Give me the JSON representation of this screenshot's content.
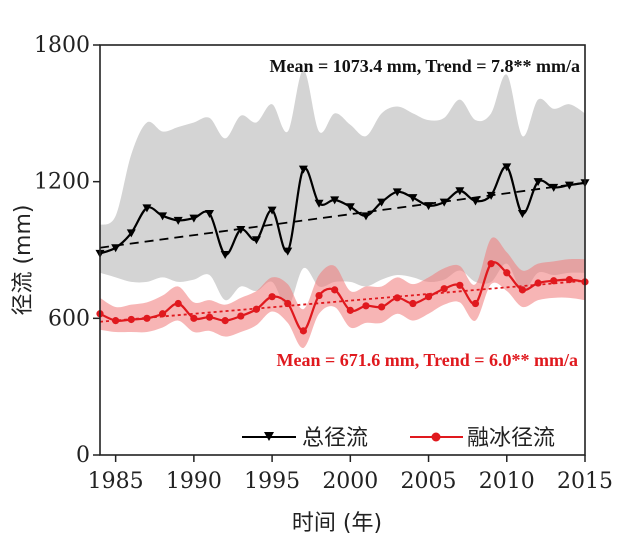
{
  "chart_data": {
    "type": "line",
    "xlabel": "时间 (年)",
    "ylabel": "径流 (mm)",
    "xlim": [
      1984,
      2015
    ],
    "ylim": [
      0,
      1800
    ],
    "xticks": [
      "1985",
      "1990",
      "1995",
      "2000",
      "2005",
      "2010",
      "2015"
    ],
    "yticks": [
      "0",
      "600",
      "1200",
      "1800"
    ],
    "x": [
      1984,
      1985,
      1986,
      1987,
      1988,
      1989,
      1990,
      1991,
      1992,
      1993,
      1994,
      1995,
      1996,
      1997,
      1998,
      1999,
      2000,
      2001,
      2002,
      2003,
      2004,
      2005,
      2006,
      2007,
      2008,
      2009,
      2010,
      2011,
      2012,
      2013,
      2014,
      2015
    ],
    "series": [
      {
        "name": "总径流",
        "color": "#000000",
        "marker": "triangle-down",
        "values": [
          885,
          910,
          975,
          1085,
          1050,
          1030,
          1040,
          1060,
          880,
          990,
          945,
          1075,
          895,
          1255,
          1105,
          1120,
          1090,
          1050,
          1110,
          1155,
          1130,
          1095,
          1110,
          1160,
          1115,
          1140,
          1265,
          1060,
          1200,
          1175,
          1185,
          1195
        ],
        "band_upper": [
          1010,
          1050,
          1320,
          1460,
          1420,
          1440,
          1460,
          1480,
          1390,
          1490,
          1460,
          1540,
          1420,
          1690,
          1420,
          1500,
          1450,
          1400,
          1500,
          1530,
          1500,
          1470,
          1480,
          1560,
          1470,
          1500,
          1670,
          1400,
          1560,
          1520,
          1540,
          1500
        ],
        "band_lower": [
          800,
          780,
          760,
          760,
          780,
          760,
          770,
          790,
          680,
          740,
          720,
          760,
          650,
          820,
          740,
          760,
          760,
          740,
          770,
          790,
          780,
          760,
          770,
          810,
          760,
          760,
          840,
          720,
          800,
          790,
          800,
          800
        ],
        "trend": {
          "start": 910,
          "end": 1195
        },
        "annotation": "Mean = 1073.4 mm, Trend = 7.8** mm/a"
      },
      {
        "name": "融冰径流",
        "color": "#e0191e",
        "marker": "circle",
        "values": [
          620,
          590,
          595,
          600,
          620,
          665,
          600,
          605,
          590,
          610,
          640,
          695,
          665,
          545,
          700,
          725,
          635,
          655,
          650,
          690,
          665,
          695,
          730,
          745,
          665,
          840,
          800,
          725,
          755,
          765,
          770,
          760
        ],
        "band_upper": [
          690,
          650,
          660,
          670,
          700,
          740,
          670,
          680,
          660,
          690,
          720,
          780,
          750,
          640,
          790,
          830,
          720,
          740,
          740,
          780,
          750,
          780,
          820,
          830,
          750,
          950,
          890,
          810,
          840,
          850,
          860,
          860
        ],
        "band_lower": [
          550,
          540,
          540,
          540,
          560,
          590,
          540,
          545,
          520,
          540,
          570,
          630,
          580,
          470,
          620,
          650,
          560,
          580,
          580,
          620,
          590,
          620,
          660,
          670,
          590,
          750,
          720,
          650,
          680,
          690,
          690,
          680
        ],
        "trend": {
          "start": 585,
          "end": 765
        },
        "annotation": "Mean = 671.6 mm, Trend = 6.0** mm/a"
      }
    ],
    "legend": {
      "placement": "bottom-right",
      "entries": [
        "总径流",
        "融冰径流"
      ]
    }
  }
}
